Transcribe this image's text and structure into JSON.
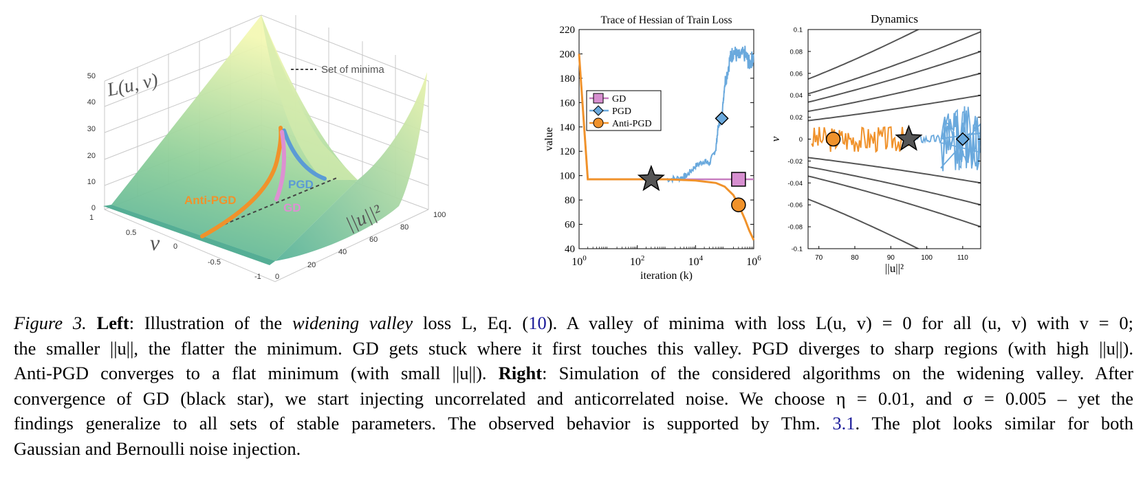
{
  "figure_left": {
    "zlabel": "L(u, v)",
    "ylabel": "v",
    "xlabel": "||u||²",
    "z_ticks": [
      "0",
      "10",
      "20",
      "30",
      "40",
      "50"
    ],
    "v_ticks": [
      "1",
      "0.5",
      "0",
      "-0.5",
      "-1"
    ],
    "u_ticks": [
      "0",
      "20",
      "40",
      "60",
      "80",
      "100"
    ],
    "legend_minima": "Set of minima",
    "label_antipgd": "Anti-PGD",
    "label_pgd": "PGD",
    "label_gd": "GD",
    "colors": {
      "gd": "#d98fd0",
      "pgd": "#5b9bd5",
      "antipgd": "#f0922b",
      "surface_low": "#5fb89a",
      "surface_high": "#f3f7b0"
    }
  },
  "chart_data": [
    {
      "type": "line",
      "title": "Trace of Hessian of Train Loss",
      "xlabel": "iteration (k)",
      "ylabel": "value",
      "xscale": "log",
      "xlim": [
        1,
        1000000
      ],
      "ylim": [
        40,
        220
      ],
      "x_ticks": [
        "10^0",
        "10^2",
        "10^4",
        "10^6"
      ],
      "y_ticks": [
        "40",
        "60",
        "80",
        "100",
        "120",
        "140",
        "160",
        "180",
        "200",
        "220"
      ],
      "legend": [
        "GD",
        "PGD",
        "Anti-PGD"
      ],
      "series": [
        {
          "name": "GD",
          "color": "#c77dc0",
          "x": [
            1,
            2,
            10,
            1000,
            10000,
            300000,
            1000000
          ],
          "y": [
            200,
            97,
            97,
            97,
            97,
            97,
            97
          ]
        },
        {
          "name": "PGD",
          "color": "#6aa9dd",
          "x": [
            1000,
            3000,
            5000,
            10000,
            20000,
            30000,
            50000,
            60000,
            80000,
            100000,
            150000,
            200000,
            300000,
            500000,
            700000,
            1000000
          ],
          "y": [
            97,
            98,
            100,
            108,
            112,
            110,
            122,
            140,
            147,
            175,
            195,
            202,
            197,
            200,
            192,
            198
          ]
        },
        {
          "name": "Anti-PGD",
          "color": "#f0922b",
          "x": [
            1,
            2,
            10,
            1000,
            10000,
            50000,
            100000,
            200000,
            300000,
            500000,
            700000,
            1000000
          ],
          "y": [
            200,
            97,
            97,
            97,
            96,
            94,
            91,
            84,
            76,
            64,
            55,
            47
          ]
        }
      ],
      "markers": [
        {
          "series": "GD",
          "shape": "square",
          "x": 300000,
          "y": 97
        },
        {
          "series": "PGD",
          "shape": "diamond",
          "x": 80000,
          "y": 147
        },
        {
          "series": "Anti-PGD",
          "shape": "circle",
          "x": 300000,
          "y": 76
        },
        {
          "series": "GD convergence",
          "shape": "star",
          "x": 300,
          "y": 97
        }
      ]
    },
    {
      "type": "line",
      "title": "Dynamics",
      "xlabel": "||u||²",
      "ylabel": "v",
      "xlim": [
        67,
        115
      ],
      "ylim": [
        -0.1,
        0.1
      ],
      "x_ticks": [
        "70",
        "80",
        "90",
        "100",
        "110"
      ],
      "y_ticks": [
        "0.1",
        "0.08",
        "0.06",
        "0.04",
        "0.02",
        "0",
        "-0.02",
        "-0.04",
        "-0.06",
        "-0.08",
        "-0.1"
      ],
      "contour_levels_at_x115": [
        0.098,
        0.08,
        0.06,
        0.04,
        -0.04,
        -0.06,
        -0.08
      ],
      "series": [
        {
          "name": "Anti-PGD",
          "color": "#f0922b",
          "x_range": [
            68,
            95
          ],
          "v_amplitude": 0.012,
          "center": 0
        },
        {
          "name": "PGD",
          "color": "#6aa9dd",
          "x_range": [
            95,
            115
          ],
          "v_amplitude": 0.025,
          "center": 0
        }
      ],
      "markers": [
        {
          "series": "Anti-PGD",
          "shape": "circle",
          "x": 74,
          "y": 0
        },
        {
          "series": "GD convergence",
          "shape": "star",
          "x": 95,
          "y": 0
        },
        {
          "series": "PGD",
          "shape": "diamond",
          "x": 110,
          "y": 0
        }
      ]
    }
  ],
  "caption": {
    "fig_label": "Figure 3.",
    "left_label": "Left",
    "widening_valley": "widening valley",
    "line1_a": ": Illustration of the ",
    "line1_b": " loss L, Eq. (",
    "eq_ref": "10",
    "line1_c": "). A valley of minima with loss L(u, v) = 0 for all (u, v) with v = 0;",
    "line2": "the smaller ||u||, the flatter the minimum. GD gets stuck where it first touches this valley. PGD diverges to sharp regions (with high ||u||).",
    "line3_a": "Anti-PGD converges to a flat minimum (with small ||u||). ",
    "right_label": "Right",
    "line3_b": ": Simulation of the considered algorithms on the widening valley. After",
    "line4": "convergence of GD (black star), we start injecting uncorrelated and anticorrelated noise. We choose η = 0.01, and σ = 0.005 – yet the",
    "line5_a": "findings generalize to all sets of stable parameters. The observed behavior is supported by Thm. ",
    "thm_ref": "3.1",
    "line5_b": ". The plot looks similar for both",
    "line6": "Gaussian and Bernoulli noise injection."
  }
}
